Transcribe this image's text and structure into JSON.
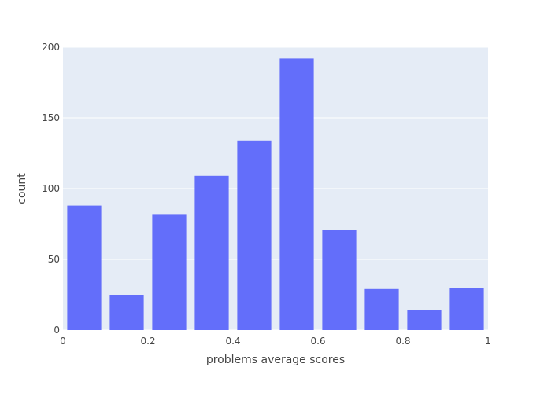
{
  "chart_data": {
    "type": "bar",
    "title": "",
    "xlabel": "problems average scores",
    "ylabel": "count",
    "xlim": [
      0,
      1
    ],
    "ylim": [
      0,
      200
    ],
    "x_ticks": [
      "0",
      "0.2",
      "0.4",
      "0.6",
      "0.8",
      "1"
    ],
    "y_ticks": [
      "0",
      "50",
      "100",
      "150",
      "200"
    ],
    "grid": true,
    "bins": [
      {
        "start": 0.0,
        "end": 0.1,
        "value": 88
      },
      {
        "start": 0.1,
        "end": 0.2,
        "value": 25
      },
      {
        "start": 0.2,
        "end": 0.3,
        "value": 82
      },
      {
        "start": 0.3,
        "end": 0.4,
        "value": 109
      },
      {
        "start": 0.4,
        "end": 0.5,
        "value": 134
      },
      {
        "start": 0.5,
        "end": 0.6,
        "value": 192
      },
      {
        "start": 0.6,
        "end": 0.7,
        "value": 71
      },
      {
        "start": 0.7,
        "end": 0.8,
        "value": 29
      },
      {
        "start": 0.8,
        "end": 0.9,
        "value": 14
      },
      {
        "start": 0.9,
        "end": 1.0,
        "value": 30
      }
    ],
    "colors": {
      "bar": "#636efa",
      "plot_bg": "#e5ecf6",
      "grid": "#ffffff",
      "text": "#444444"
    }
  }
}
